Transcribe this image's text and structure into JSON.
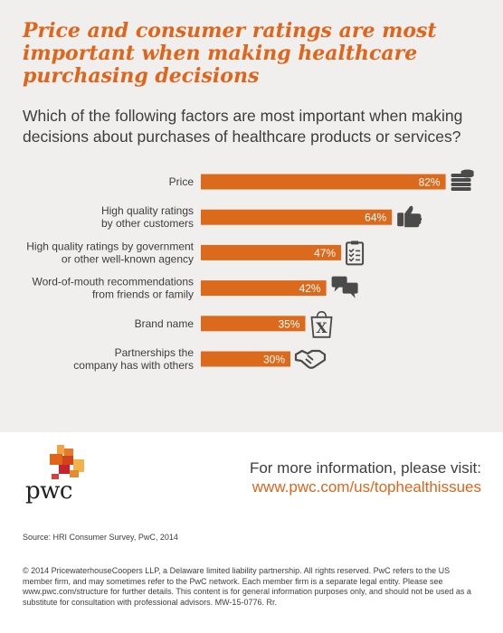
{
  "header": {
    "title": "Price and consumer ratings are most important when making healthcare purchasing decisions",
    "subtitle": "Which of the following factors are most important when making decisions about purchases of healthcare products or services?"
  },
  "chart_data": {
    "type": "bar",
    "orientation": "horizontal",
    "categories": [
      [
        "Price"
      ],
      [
        "High quality ratings",
        "by other customers"
      ],
      [
        "High quality ratings by government",
        "or other well-known agency"
      ],
      [
        "Word-of-mouth recommendations",
        "from friends or family"
      ],
      [
        "Brand name"
      ],
      [
        "Partnerships the",
        "company has with others"
      ]
    ],
    "values": [
      82,
      64,
      47,
      42,
      35,
      30
    ],
    "value_labels": [
      "82%",
      "64%",
      "47%",
      "42%",
      "35%",
      "30%"
    ],
    "icons": [
      "money-stack-icon",
      "thumbs-up-icon",
      "clipboard-checklist-icon",
      "speech-bubbles-icon",
      "shopping-bag-icon",
      "handshake-icon"
    ],
    "bar_color": "#dc6a1c",
    "grid": false,
    "legend": "none"
  },
  "footer": {
    "logo_text": "pwc",
    "more_info": "For more information, please visit:",
    "url": "www.pwc.com/us/tophealthissues",
    "source": "Source: HRI Consumer Survey, PwC, 2014",
    "copyright": "© 2014 PricewaterhouseCoopers LLP, a Delaware limited liability partnership. All rights reserved. PwC refers to the US member firm, and may sometimes refer to the PwC network. Each member firm is a separate legal entity. Please see www.pwc.com/structure for further details. This content is for general information purposes only, and should not be used as a substitute for consultation with professional advisors. MW-15-0776. Rr."
  },
  "colors": {
    "accent": "#e0641a",
    "bar": "#dc6a1c",
    "icon": "#4a4a4a",
    "top_background": "#f0efed"
  }
}
